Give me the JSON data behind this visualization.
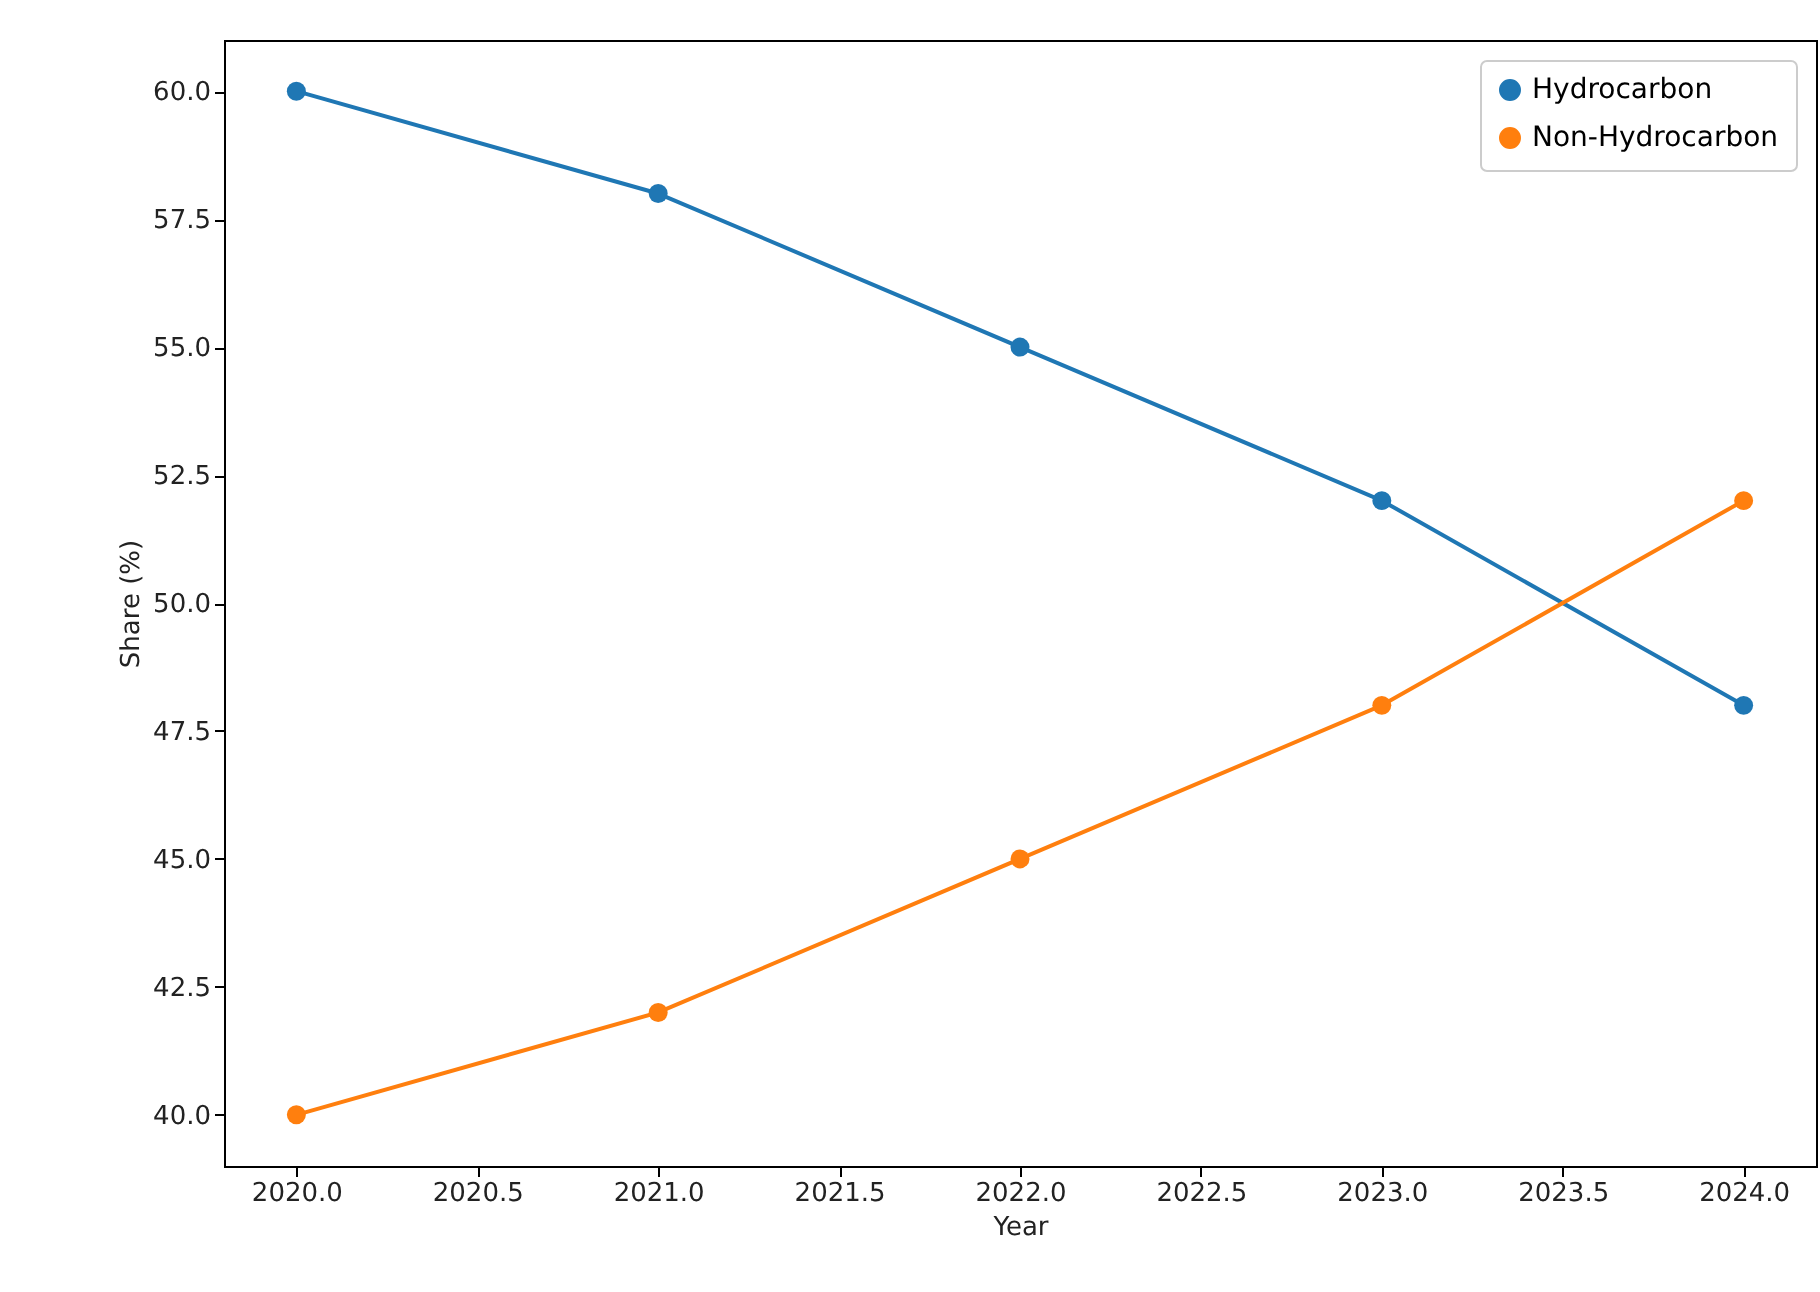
{
  "chart_data": {
    "type": "line",
    "xlabel": "Year",
    "ylabel": "Share (%)",
    "x": [
      2020,
      2021,
      2022,
      2023,
      2024
    ],
    "series": [
      {
        "name": "Hydrocarbon",
        "color": "#1f77b4",
        "values": [
          60,
          58,
          55,
          52,
          48
        ]
      },
      {
        "name": "Non-Hydrocarbon",
        "color": "#ff7f0e",
        "values": [
          40,
          42,
          45,
          48,
          52
        ]
      }
    ],
    "xlim": [
      2019.8,
      2024.2
    ],
    "xticks": [
      {
        "value": 2020,
        "label": "2020.0"
      },
      {
        "value": 2020.5,
        "label": "2020.5"
      },
      {
        "value": 2021,
        "label": "2021.0"
      },
      {
        "value": 2021.5,
        "label": "2021.5"
      },
      {
        "value": 2022,
        "label": "2022.0"
      },
      {
        "value": 2022.5,
        "label": "2022.5"
      },
      {
        "value": 2023,
        "label": "2023.0"
      },
      {
        "value": 2023.5,
        "label": "2023.5"
      },
      {
        "value": 2024,
        "label": "2024.0"
      }
    ],
    "ylim": [
      39,
      61
    ],
    "yticks": [
      {
        "value": 40,
        "label": "40.0"
      },
      {
        "value": 42.5,
        "label": "42.5"
      },
      {
        "value": 45,
        "label": "45.0"
      },
      {
        "value": 47.5,
        "label": "47.5"
      },
      {
        "value": 50,
        "label": "50.0"
      },
      {
        "value": 52.5,
        "label": "52.5"
      },
      {
        "value": 55,
        "label": "55.0"
      },
      {
        "value": 57.5,
        "label": "57.5"
      },
      {
        "value": 60,
        "label": "60.0"
      }
    ],
    "grid": false,
    "legend": "top right",
    "marker": "circle",
    "line_style": "solid"
  }
}
